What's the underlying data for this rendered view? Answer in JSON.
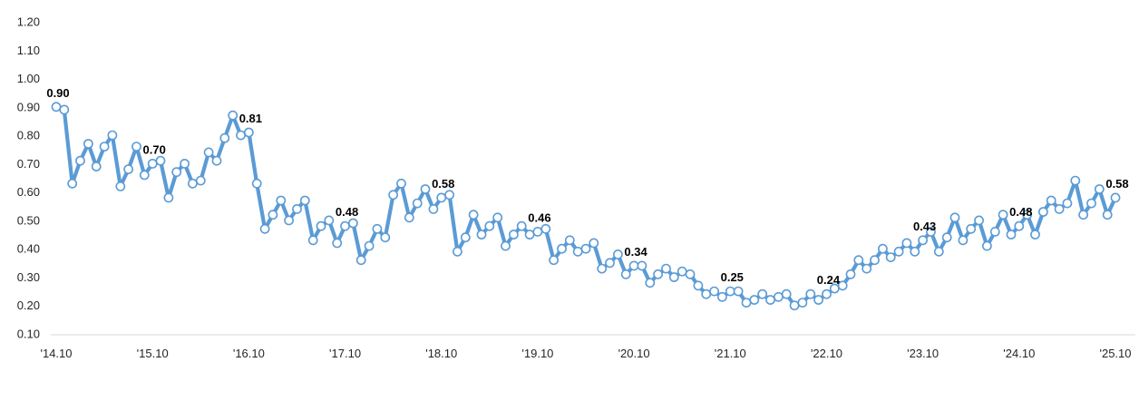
{
  "chart_data": {
    "type": "line",
    "title": "",
    "xlabel": "",
    "ylabel": "",
    "x_start": "2014-10",
    "x_end": "2025-10",
    "x_interval": "monthly",
    "x_tick_labels": [
      "'14.10",
      "'15.10",
      "'16.10",
      "'17.10",
      "'18.10",
      "'19.10",
      "'20.10",
      "'21.10",
      "'22.10",
      "'23.10",
      "'24.10",
      "'25.10"
    ],
    "y_tick_labels": [
      "1.20",
      "1.10",
      "1.00",
      "0.90",
      "0.80",
      "0.70",
      "0.60",
      "0.50",
      "0.40",
      "0.30",
      "0.20",
      "0.10"
    ],
    "ylim": [
      0.1,
      1.2
    ],
    "grid": false,
    "legend": false,
    "marker": "open-circle",
    "line_color": "#5B9BD5",
    "marker_fill": "#FFFFFF",
    "axis_line_color": "#D9D9D9",
    "axis_text_color": "#262626",
    "label_text_color": "#000000",
    "values": [
      0.9,
      0.89,
      0.63,
      0.71,
      0.77,
      0.69,
      0.76,
      0.8,
      0.62,
      0.68,
      0.76,
      0.66,
      0.7,
      0.71,
      0.58,
      0.67,
      0.7,
      0.63,
      0.64,
      0.74,
      0.71,
      0.79,
      0.87,
      0.8,
      0.81,
      0.63,
      0.47,
      0.52,
      0.57,
      0.5,
      0.54,
      0.57,
      0.43,
      0.48,
      0.5,
      0.42,
      0.48,
      0.49,
      0.36,
      0.41,
      0.47,
      0.44,
      0.59,
      0.63,
      0.51,
      0.56,
      0.61,
      0.54,
      0.58,
      0.59,
      0.39,
      0.44,
      0.52,
      0.45,
      0.48,
      0.51,
      0.41,
      0.45,
      0.48,
      0.45,
      0.46,
      0.47,
      0.36,
      0.4,
      0.43,
      0.39,
      0.4,
      0.42,
      0.33,
      0.35,
      0.38,
      0.31,
      0.34,
      0.34,
      0.28,
      0.31,
      0.33,
      0.3,
      0.32,
      0.31,
      0.27,
      0.24,
      0.25,
      0.23,
      0.25,
      0.25,
      0.21,
      0.22,
      0.24,
      0.22,
      0.23,
      0.24,
      0.2,
      0.21,
      0.24,
      0.22,
      0.24,
      0.26,
      0.27,
      0.31,
      0.36,
      0.33,
      0.36,
      0.4,
      0.37,
      0.39,
      0.42,
      0.39,
      0.43,
      0.46,
      0.39,
      0.44,
      0.51,
      0.43,
      0.47,
      0.5,
      0.41,
      0.46,
      0.52,
      0.45,
      0.48,
      0.52,
      0.45,
      0.53,
      0.57,
      0.54,
      0.56,
      0.64,
      0.52,
      0.56,
      0.61,
      0.52,
      0.58
    ],
    "annotations": [
      {
        "index": 0,
        "label": "0.90"
      },
      {
        "index": 12,
        "label": "0.70"
      },
      {
        "index": 24,
        "label": "0.81"
      },
      {
        "index": 36,
        "label": "0.48"
      },
      {
        "index": 48,
        "label": "0.58"
      },
      {
        "index": 60,
        "label": "0.46"
      },
      {
        "index": 72,
        "label": "0.34"
      },
      {
        "index": 84,
        "label": "0.25"
      },
      {
        "index": 96,
        "label": "0.24"
      },
      {
        "index": 108,
        "label": "0.43"
      },
      {
        "index": 120,
        "label": "0.48"
      },
      {
        "index": 132,
        "label": "0.58"
      }
    ]
  }
}
